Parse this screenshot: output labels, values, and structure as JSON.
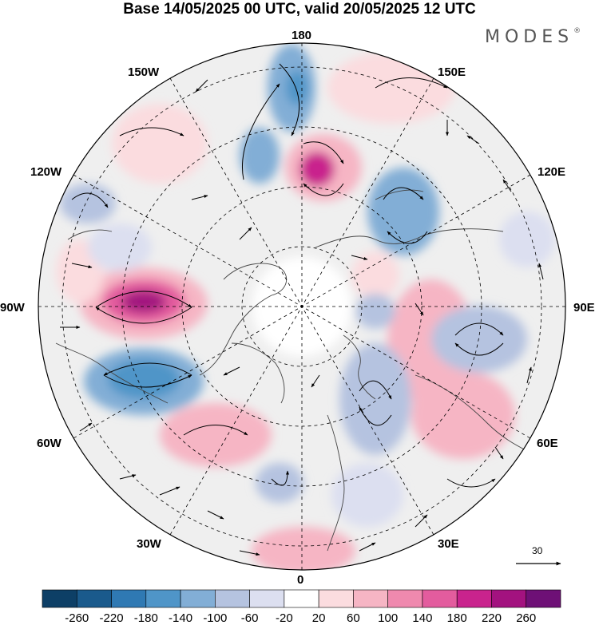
{
  "title": "Base 14/05/2025 00 UTC, valid 20/05/2025 12 UTC",
  "brand": "MODES",
  "brand_mark": "®",
  "longitude_labels": {
    "n180": "180",
    "e150": "150E",
    "e120": "120E",
    "e90": "90E",
    "e60": "60E",
    "e30": "30E",
    "n0": "0",
    "w30": "30W",
    "w60": "60W",
    "w90": "90W",
    "w120": "120W",
    "w150": "150W"
  },
  "reference_vector": {
    "label": "30",
    "value": 30
  },
  "colorbar": {
    "labels": [
      "-260",
      "-220",
      "-180",
      "-140",
      "-100",
      "-60",
      "-20",
      "20",
      "60",
      "100",
      "140",
      "180",
      "220",
      "260"
    ],
    "colors": [
      "#0d3f66",
      "#1a5a8c",
      "#2f79b3",
      "#4f95c8",
      "#82aed6",
      "#b5c3e0",
      "#dcdff0",
      "#ffffff",
      "#fbdcdf",
      "#f6b5c4",
      "#ef89ae",
      "#e35c9e",
      "#c9238d",
      "#a3127f",
      "#6e1076"
    ]
  }
}
